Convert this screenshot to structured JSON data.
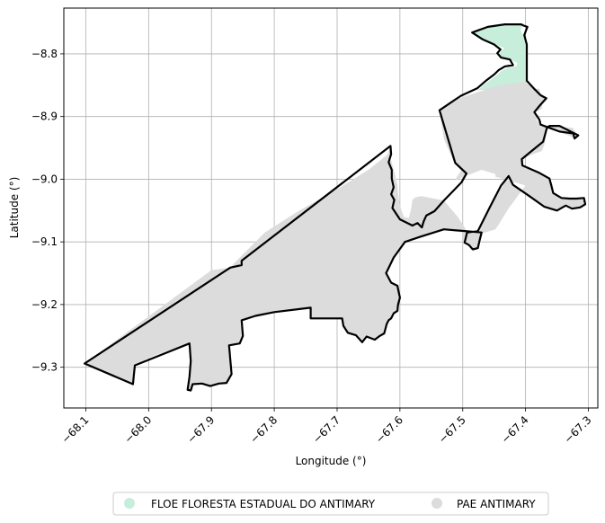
{
  "chart_data": {
    "type": "map",
    "xlabel": "Longitude (°)",
    "ylabel": "Latitude (°)",
    "xlim": [
      -68.135,
      -67.285
    ],
    "ylim": [
      -9.365,
      -8.727
    ],
    "grid": true,
    "x_ticks": [
      {
        "value": -68.1,
        "label": "−68.1"
      },
      {
        "value": -68.0,
        "label": "−68.0"
      },
      {
        "value": -67.9,
        "label": "−67.9"
      },
      {
        "value": -67.8,
        "label": "−67.8"
      },
      {
        "value": -67.7,
        "label": "−67.7"
      },
      {
        "value": -67.6,
        "label": "−67.6"
      },
      {
        "value": -67.5,
        "label": "−67.5"
      },
      {
        "value": -67.4,
        "label": "−67.4"
      },
      {
        "value": -67.3,
        "label": "−67.3"
      }
    ],
    "y_ticks": [
      {
        "value": -8.8,
        "label": "−8.8"
      },
      {
        "value": -8.9,
        "label": "−8.9"
      },
      {
        "value": -9.0,
        "label": "−9.0"
      },
      {
        "value": -9.1,
        "label": "−9.1"
      },
      {
        "value": -9.2,
        "label": "−9.2"
      },
      {
        "value": -9.3,
        "label": "−9.3"
      }
    ],
    "legend_placement": "bottom-center",
    "regions": [
      {
        "name": "FLOE FLORESTA ESTADUAL DO ANTIMARY",
        "color": "#c6eedb",
        "outline": "#000000",
        "polygon": [
          [
            -67.397,
            -8.758
          ],
          [
            -67.405,
            -8.755
          ],
          [
            -67.408,
            -8.762
          ],
          [
            -67.403,
            -8.773
          ],
          [
            -67.398,
            -8.785
          ],
          [
            -67.398,
            -8.8
          ],
          [
            -67.398,
            -8.815
          ],
          [
            -67.397,
            -8.83
          ],
          [
            -67.397,
            -8.84
          ],
          [
            -67.397,
            -8.843
          ],
          [
            -67.405,
            -8.844
          ],
          [
            -67.415,
            -8.846
          ],
          [
            -67.428,
            -8.849
          ],
          [
            -67.44,
            -8.852
          ],
          [
            -67.452,
            -8.853
          ],
          [
            -67.466,
            -8.857
          ],
          [
            -67.476,
            -8.858
          ],
          [
            -67.462,
            -8.846
          ],
          [
            -67.448,
            -8.836
          ],
          [
            -67.438,
            -8.827
          ],
          [
            -67.427,
            -8.822
          ],
          [
            -67.415,
            -8.82
          ],
          [
            -67.413,
            -8.815
          ],
          [
            -67.422,
            -8.81
          ],
          [
            -67.436,
            -8.808
          ],
          [
            -67.442,
            -8.801
          ],
          [
            -67.438,
            -8.794
          ],
          [
            -67.433,
            -8.791
          ],
          [
            -67.445,
            -8.786
          ],
          [
            -67.46,
            -8.779
          ],
          [
            -67.474,
            -8.772
          ],
          [
            -67.485,
            -8.765
          ],
          [
            -67.475,
            -8.76
          ],
          [
            -67.455,
            -8.756
          ],
          [
            -67.428,
            -8.752
          ],
          [
            -67.41,
            -8.752
          ]
        ]
      },
      {
        "name": "PAE ANTIMARY",
        "color": "#dcdcdc",
        "outline": "#000000",
        "polygon": [
          [
            -68.102,
            -9.294
          ],
          [
            -68.025,
            -9.327
          ],
          [
            -68.022,
            -9.297
          ],
          [
            -68.0,
            -9.285
          ],
          [
            -67.96,
            -9.27
          ],
          [
            -67.935,
            -9.262
          ],
          [
            -67.933,
            -9.29
          ],
          [
            -67.935,
            -9.315
          ],
          [
            -67.938,
            -9.336
          ],
          [
            -67.933,
            -9.337
          ],
          [
            -67.93,
            -9.327
          ],
          [
            -67.915,
            -9.326
          ],
          [
            -67.902,
            -9.33
          ],
          [
            -67.888,
            -9.326
          ],
          [
            -67.876,
            -9.325
          ],
          [
            -67.872,
            -9.315
          ],
          [
            -67.868,
            -9.311
          ],
          [
            -67.872,
            -9.265
          ],
          [
            -67.855,
            -9.262
          ],
          [
            -67.85,
            -9.25
          ],
          [
            -67.852,
            -9.225
          ],
          [
            -67.83,
            -9.218
          ],
          [
            -67.8,
            -9.212
          ],
          [
            -67.77,
            -9.207
          ],
          [
            -67.742,
            -9.205
          ],
          [
            -67.742,
            -9.222
          ],
          [
            -67.72,
            -9.222
          ],
          [
            -67.692,
            -9.222
          ],
          [
            -67.69,
            -9.233
          ],
          [
            -67.682,
            -9.244
          ],
          [
            -67.67,
            -9.248
          ],
          [
            -67.66,
            -9.259
          ],
          [
            -67.653,
            -9.25
          ],
          [
            -67.64,
            -9.255
          ],
          [
            -67.632,
            -9.249
          ],
          [
            -67.624,
            -9.245
          ],
          [
            -67.621,
            -9.23
          ],
          [
            -67.618,
            -9.224
          ],
          [
            -67.613,
            -9.222
          ],
          [
            -67.61,
            -9.213
          ],
          [
            -67.603,
            -9.208
          ],
          [
            -67.602,
            -9.199
          ],
          [
            -67.6,
            -9.188
          ],
          [
            -67.602,
            -9.178
          ],
          [
            -67.606,
            -9.17
          ],
          [
            -67.613,
            -9.164
          ],
          [
            -67.622,
            -9.149
          ],
          [
            -67.608,
            -9.125
          ],
          [
            -67.592,
            -9.1
          ],
          [
            -67.568,
            -9.092
          ],
          [
            -67.528,
            -9.081
          ],
          [
            -67.5,
            -9.085
          ],
          [
            -67.5,
            -9.102
          ],
          [
            -67.49,
            -9.104
          ],
          [
            -67.482,
            -9.114
          ],
          [
            -67.474,
            -9.111
          ],
          [
            -67.472,
            -9.1
          ],
          [
            -67.468,
            -9.086
          ],
          [
            -67.448,
            -9.08
          ],
          [
            -67.44,
            -9.068
          ],
          [
            -67.428,
            -9.048
          ],
          [
            -67.4,
            -9.01
          ],
          [
            -67.448,
            -8.996
          ],
          [
            -67.448,
            -8.992
          ],
          [
            -67.47,
            -8.985
          ],
          [
            -67.513,
            -9.002
          ],
          [
            -67.502,
            -8.985
          ],
          [
            -67.513,
            -8.975
          ],
          [
            -67.53,
            -8.936
          ],
          [
            -67.537,
            -8.89
          ],
          [
            -67.503,
            -8.87
          ],
          [
            -67.464,
            -8.857
          ],
          [
            -67.476,
            -8.858
          ],
          [
            -67.452,
            -8.853
          ],
          [
            -67.415,
            -8.846
          ],
          [
            -67.398,
            -8.843
          ],
          [
            -67.401,
            -8.845
          ],
          [
            -67.388,
            -8.855
          ],
          [
            -67.378,
            -8.856
          ],
          [
            -67.376,
            -8.865
          ],
          [
            -67.372,
            -8.87
          ],
          [
            -67.366,
            -8.873
          ],
          [
            -67.373,
            -8.878
          ],
          [
            -67.374,
            -8.887
          ],
          [
            -67.378,
            -8.89
          ],
          [
            -67.386,
            -8.893
          ],
          [
            -67.382,
            -8.905
          ],
          [
            -67.376,
            -8.916
          ],
          [
            -67.364,
            -8.915
          ],
          [
            -67.34,
            -8.917
          ],
          [
            -67.325,
            -8.918
          ],
          [
            -67.32,
            -8.925
          ],
          [
            -67.322,
            -8.935
          ],
          [
            -67.332,
            -8.93
          ],
          [
            -67.346,
            -8.925
          ],
          [
            -67.366,
            -8.915
          ],
          [
            -67.369,
            -8.942
          ],
          [
            -67.374,
            -8.955
          ],
          [
            -67.388,
            -8.96
          ],
          [
            -67.402,
            -8.966
          ],
          [
            -67.406,
            -8.978
          ],
          [
            -67.376,
            -8.99
          ],
          [
            -67.361,
            -9.0
          ],
          [
            -67.36,
            -9.01
          ],
          [
            -67.355,
            -9.022
          ],
          [
            -67.345,
            -9.032
          ],
          [
            -67.332,
            -9.031
          ],
          [
            -67.318,
            -9.031
          ],
          [
            -67.307,
            -9.03
          ],
          [
            -67.303,
            -9.038
          ],
          [
            -67.312,
            -9.045
          ],
          [
            -67.323,
            -9.046
          ],
          [
            -67.336,
            -9.04
          ],
          [
            -67.349,
            -9.049
          ],
          [
            -67.37,
            -9.043
          ],
          [
            -67.394,
            -9.028
          ],
          [
            -67.42,
            -9.009
          ],
          [
            -67.427,
            -8.995
          ],
          [
            -67.456,
            -9.043
          ],
          [
            -67.476,
            -9.083
          ],
          [
            -67.493,
            -9.083
          ],
          [
            -67.508,
            -9.06
          ],
          [
            -67.53,
            -9.034
          ],
          [
            -67.566,
            -9.027
          ],
          [
            -67.575,
            -9.029
          ],
          [
            -67.58,
            -9.033
          ],
          [
            -67.582,
            -9.047
          ],
          [
            -67.586,
            -9.062
          ],
          [
            -67.594,
            -9.06
          ],
          [
            -67.598,
            -9.048
          ],
          [
            -67.602,
            -9.032
          ],
          [
            -67.604,
            -9.01
          ],
          [
            -67.608,
            -8.992
          ],
          [
            -67.615,
            -8.966
          ],
          [
            -67.615,
            -8.947
          ],
          [
            -67.62,
            -8.961
          ],
          [
            -67.65,
            -8.985
          ],
          [
            -67.7,
            -9.016
          ],
          [
            -67.76,
            -9.05
          ],
          [
            -67.815,
            -9.085
          ],
          [
            -67.86,
            -9.13
          ],
          [
            -67.87,
            -9.141
          ],
          [
            -67.9,
            -9.145
          ],
          [
            -68.102,
            -9.294
          ]
        ]
      }
    ],
    "outline_path": [
      [
        -68.102,
        -9.294
      ],
      [
        -67.87,
        -9.141
      ],
      [
        -67.852,
        -9.137
      ],
      [
        -67.852,
        -9.13
      ],
      [
        -67.615,
        -8.947
      ],
      [
        -67.614,
        -8.96
      ],
      [
        -67.618,
        -8.973
      ],
      [
        -67.613,
        -8.985
      ],
      [
        -67.613,
        -8.999
      ],
      [
        -67.61,
        -9.013
      ],
      [
        -67.614,
        -9.024
      ],
      [
        -67.609,
        -9.033
      ],
      [
        -67.612,
        -9.046
      ],
      [
        -67.6,
        -9.064
      ],
      [
        -67.58,
        -9.074
      ],
      [
        -67.572,
        -9.07
      ],
      [
        -67.565,
        -9.077
      ],
      [
        -67.562,
        -9.067
      ],
      [
        -67.558,
        -9.058
      ],
      [
        -67.545,
        -9.051
      ],
      [
        -67.53,
        -9.034
      ],
      [
        -67.502,
        -9.005
      ],
      [
        -67.494,
        -8.991
      ],
      [
        -67.512,
        -8.974
      ],
      [
        -67.537,
        -8.89
      ],
      [
        -67.503,
        -8.867
      ],
      [
        -67.477,
        -8.855
      ],
      [
        -67.462,
        -8.842
      ],
      [
        -67.45,
        -8.833
      ],
      [
        -67.443,
        -8.826
      ],
      [
        -67.433,
        -8.82
      ],
      [
        -67.42,
        -8.818
      ],
      [
        -67.425,
        -8.809
      ],
      [
        -67.439,
        -8.806
      ],
      [
        -67.445,
        -8.799
      ],
      [
        -67.44,
        -8.793
      ],
      [
        -67.45,
        -8.785
      ],
      [
        -67.468,
        -8.777
      ],
      [
        -67.485,
        -8.766
      ],
      [
        -67.46,
        -8.757
      ],
      [
        -67.433,
        -8.753
      ],
      [
        -67.407,
        -8.753
      ],
      [
        -67.403,
        -8.755
      ],
      [
        -67.397,
        -8.757
      ],
      [
        -67.402,
        -8.77
      ],
      [
        -67.398,
        -8.785
      ],
      [
        -67.398,
        -8.812
      ],
      [
        -67.398,
        -8.843
      ],
      [
        -67.385,
        -8.857
      ],
      [
        -67.376,
        -8.866
      ],
      [
        -67.367,
        -8.871
      ],
      [
        -67.377,
        -8.882
      ],
      [
        -67.386,
        -8.893
      ],
      [
        -67.378,
        -8.905
      ],
      [
        -67.376,
        -8.913
      ],
      [
        -67.346,
        -8.924
      ],
      [
        -67.324,
        -8.927
      ],
      [
        -67.322,
        -8.935
      ],
      [
        -67.316,
        -8.93
      ],
      [
        -67.346,
        -8.915
      ],
      [
        -67.362,
        -8.915
      ],
      [
        -67.366,
        -8.918
      ],
      [
        -67.372,
        -8.94
      ],
      [
        -67.394,
        -8.958
      ],
      [
        -67.406,
        -8.968
      ],
      [
        -67.405,
        -8.978
      ],
      [
        -67.378,
        -8.99
      ],
      [
        -67.362,
        -8.999
      ],
      [
        -67.359,
        -9.01
      ],
      [
        -67.356,
        -9.022
      ],
      [
        -67.343,
        -9.03
      ],
      [
        -67.33,
        -9.031
      ],
      [
        -67.319,
        -9.031
      ],
      [
        -67.307,
        -9.03
      ],
      [
        -67.305,
        -9.04
      ],
      [
        -67.313,
        -9.045
      ],
      [
        -67.326,
        -9.047
      ],
      [
        -67.336,
        -9.042
      ],
      [
        -67.35,
        -9.05
      ],
      [
        -67.37,
        -9.044
      ],
      [
        -67.394,
        -9.027
      ],
      [
        -67.42,
        -9.009
      ],
      [
        -67.427,
        -8.995
      ],
      [
        -67.439,
        -9.01
      ],
      [
        -67.456,
        -9.043
      ],
      [
        -67.476,
        -9.083
      ],
      [
        -67.493,
        -9.085
      ],
      [
        -67.497,
        -9.101
      ],
      [
        -67.49,
        -9.105
      ],
      [
        -67.484,
        -9.112
      ],
      [
        -67.476,
        -9.11
      ],
      [
        -67.473,
        -9.097
      ],
      [
        -67.47,
        -9.085
      ],
      [
        -67.53,
        -9.08
      ],
      [
        -67.568,
        -9.092
      ],
      [
        -67.592,
        -9.1
      ],
      [
        -67.61,
        -9.125
      ],
      [
        -67.622,
        -9.15
      ],
      [
        -67.614,
        -9.165
      ],
      [
        -67.604,
        -9.17
      ],
      [
        -67.602,
        -9.18
      ],
      [
        -67.6,
        -9.189
      ],
      [
        -67.603,
        -9.2
      ],
      [
        -67.604,
        -9.21
      ],
      [
        -67.61,
        -9.214
      ],
      [
        -67.614,
        -9.222
      ],
      [
        -67.618,
        -9.225
      ],
      [
        -67.621,
        -9.231
      ],
      [
        -67.625,
        -9.246
      ],
      [
        -67.632,
        -9.25
      ],
      [
        -67.64,
        -9.256
      ],
      [
        -67.653,
        -9.251
      ],
      [
        -67.66,
        -9.26
      ],
      [
        -67.67,
        -9.249
      ],
      [
        -67.683,
        -9.245
      ],
      [
        -67.69,
        -9.234
      ],
      [
        -67.692,
        -9.222
      ],
      [
        -67.742,
        -9.222
      ],
      [
        -67.742,
        -9.205
      ],
      [
        -67.8,
        -9.212
      ],
      [
        -67.83,
        -9.218
      ],
      [
        -67.852,
        -9.225
      ],
      [
        -67.85,
        -9.25
      ],
      [
        -67.855,
        -9.262
      ],
      [
        -67.872,
        -9.265
      ],
      [
        -67.868,
        -9.311
      ],
      [
        -67.876,
        -9.325
      ],
      [
        -67.888,
        -9.326
      ],
      [
        -67.902,
        -9.33
      ],
      [
        -67.915,
        -9.326
      ],
      [
        -67.93,
        -9.327
      ],
      [
        -67.933,
        -9.337
      ],
      [
        -67.938,
        -9.336
      ],
      [
        -67.935,
        -9.315
      ],
      [
        -67.933,
        -9.29
      ],
      [
        -67.935,
        -9.262
      ],
      [
        -68.022,
        -9.297
      ],
      [
        -68.025,
        -9.327
      ],
      [
        -68.102,
        -9.294
      ]
    ]
  }
}
